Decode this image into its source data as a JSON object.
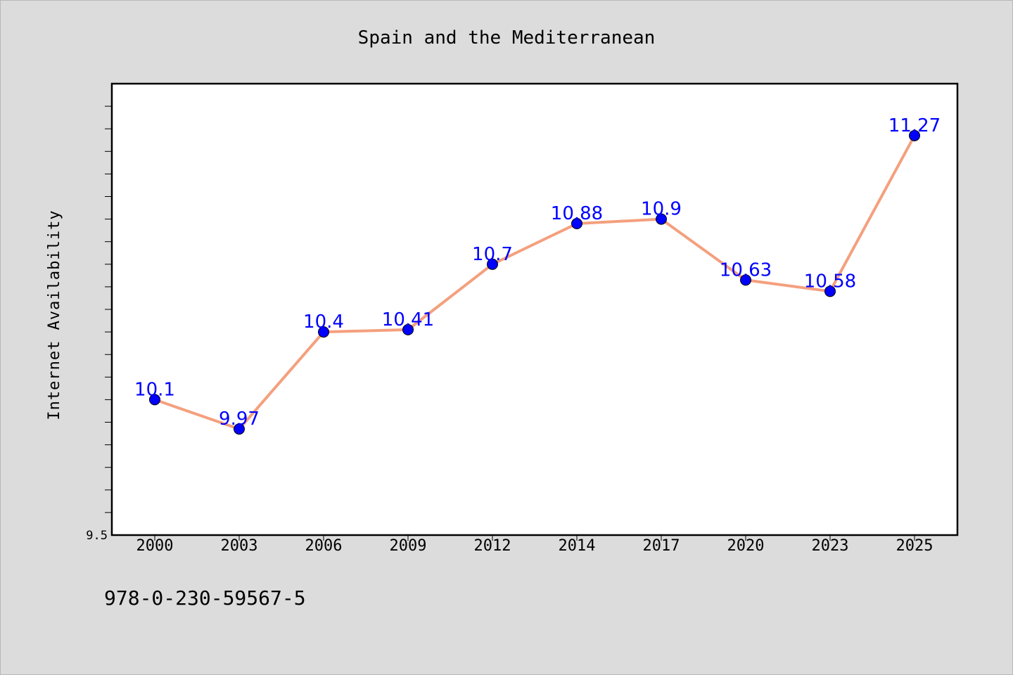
{
  "chart_data": {
    "type": "line",
    "title": "Spain and the Mediterranean",
    "xlabel": "",
    "ylabel": "Internet Availability",
    "categories": [
      "2000",
      "2003",
      "2006",
      "2009",
      "2012",
      "2014",
      "2017",
      "2020",
      "2023",
      "2025"
    ],
    "values": [
      10.1,
      9.97,
      10.4,
      10.41,
      10.7,
      10.88,
      10.9,
      10.63,
      10.58,
      11.27
    ],
    "data_labels": [
      "10.1",
      "9.97",
      "10.4",
      "10.41",
      "10.7",
      "10.88",
      "10.9",
      "10.63",
      "10.58",
      "11.27"
    ],
    "ytick_labels": [
      "9.5"
    ],
    "ylim": [
      9.5,
      11.5
    ],
    "grid": false,
    "line_color": "#f4a07e",
    "marker_color": "#0000ff",
    "label_color": "#0000ff"
  },
  "footer": {
    "code": "978-0-230-59567-5"
  }
}
